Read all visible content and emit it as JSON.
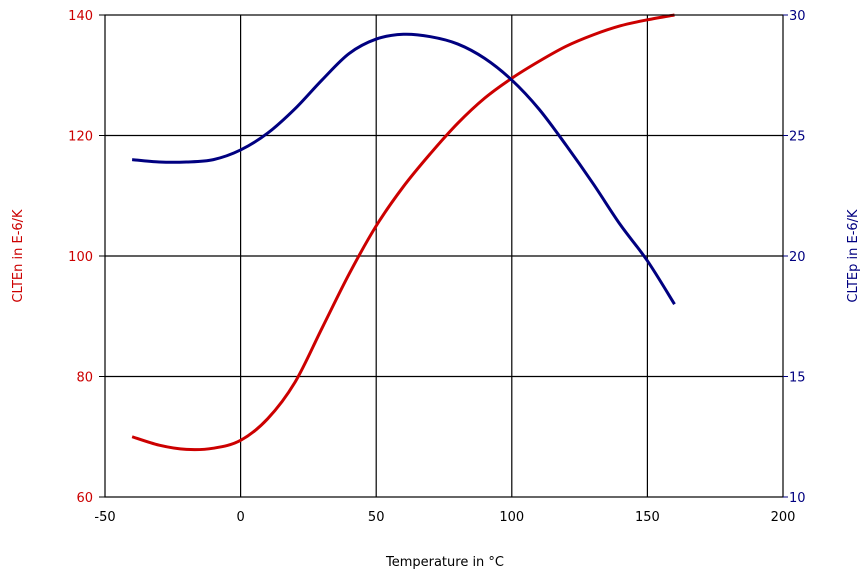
{
  "chart_data": {
    "type": "line",
    "xlabel": "Temperature in °C",
    "ylabel_left": "CLTEn in E-6/K",
    "ylabel_right": "CLTEp in E-6/K",
    "xlim": [
      -50,
      200
    ],
    "ylim_left": [
      60,
      140
    ],
    "ylim_right": [
      10,
      30
    ],
    "x_ticks": [
      "-50",
      "0",
      "50",
      "100",
      "150",
      "200"
    ],
    "y_left_ticks": [
      "60",
      "80",
      "100",
      "120",
      "140"
    ],
    "y_right_ticks": [
      "10",
      "15",
      "20",
      "25",
      "30"
    ],
    "grid": true,
    "colors": {
      "left_axis": "#cc0000",
      "right_axis": "#000080",
      "grid": "#000000"
    },
    "series": [
      {
        "name": "CLTEn",
        "axis": "left",
        "color": "#cc0000",
        "x": [
          -40,
          -30,
          -20,
          -10,
          0,
          10,
          20,
          30,
          40,
          50,
          60,
          70,
          80,
          90,
          100,
          110,
          120,
          130,
          140,
          150,
          160
        ],
        "y": [
          70,
          68.6,
          67.9,
          68.1,
          69.4,
          73,
          79,
          88,
          97,
          105,
          111.5,
          117,
          122,
          126.2,
          129.5,
          132.3,
          134.8,
          136.7,
          138.2,
          139.2,
          140
        ]
      },
      {
        "name": "CLTEp",
        "axis": "right",
        "color": "#000080",
        "x": [
          -40,
          -30,
          -20,
          -10,
          0,
          10,
          20,
          30,
          40,
          50,
          60,
          70,
          80,
          90,
          100,
          110,
          120,
          130,
          140,
          150,
          160
        ],
        "y": [
          24,
          23.9,
          23.9,
          24.0,
          24.4,
          25.1,
          26.1,
          27.3,
          28.4,
          29.0,
          29.2,
          29.1,
          28.8,
          28.2,
          27.3,
          26.1,
          24.6,
          23.0,
          21.3,
          19.8,
          18.0
        ]
      }
    ]
  }
}
